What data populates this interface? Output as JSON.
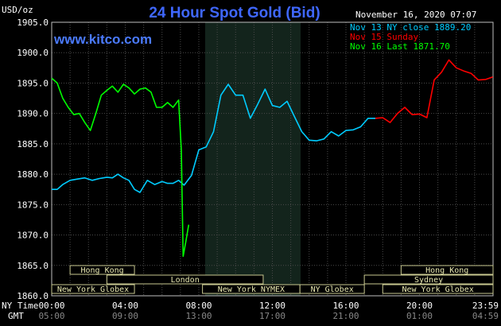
{
  "chart_data": {
    "type": "line",
    "title": "24 Hour Spot Gold (Bid)",
    "website": "www.kitco.com",
    "y_unit": "USD/oz",
    "date": "November 16, 2020 07:07",
    "ylim": [
      1860,
      1905
    ],
    "y_ticks": [
      "1905.0",
      "1900.0",
      "1895.0",
      "1890.0",
      "1885.0",
      "1880.0",
      "1875.0",
      "1870.0",
      "1865.0",
      "1860.0"
    ],
    "x_ticks_ny": [
      "00:00",
      "04:00",
      "08:00",
      "12:00",
      "16:00",
      "20:00",
      "23:59"
    ],
    "x_ticks_gmt": [
      "05:00",
      "09:00",
      "13:00",
      "17:00",
      "21:00",
      "01:00",
      "04:59"
    ],
    "x_row_labels": {
      "ny": "NY Time",
      "gmt": "GMT"
    },
    "grid": true,
    "legend": [
      {
        "label": "Nov 13 NY close 1889.20",
        "color": "#00ccff"
      },
      {
        "label": "Nov 15 Sunday",
        "color": "#ff0000"
      },
      {
        "label": "Nov 16 Last 1871.70",
        "color": "#00ff00"
      }
    ],
    "sessions": [
      {
        "label": "Hong Kong",
        "row": 0,
        "start_hour": 1.0,
        "end_hour": 4.5
      },
      {
        "label": "London",
        "row": 1,
        "start_hour": 3.0,
        "end_hour": 11.5
      },
      {
        "label": "New York Globex",
        "row": 2,
        "start_hour": 0.0,
        "end_hour": 4.5
      },
      {
        "label": "New York NYMEX",
        "row": 2,
        "start_hour": 8.2,
        "end_hour": 13.5
      },
      {
        "label": "NY Globex",
        "row": 2,
        "start_hour": 13.5,
        "end_hour": 17.0
      },
      {
        "label": "Hong Kong",
        "row": 0,
        "start_hour": 19.0,
        "end_hour": 24.0
      },
      {
        "label": "Sydney",
        "row": 1,
        "start_hour": 17.0,
        "end_hour": 24.0
      },
      {
        "label": "New York Globex",
        "row": 2,
        "start_hour": 18.0,
        "end_hour": 24.0
      }
    ],
    "series": [
      {
        "name": "Nov 13 NY close 1889.20",
        "color": "#00ccff",
        "x": [
          0.0,
          0.3,
          0.6,
          1.0,
          1.4,
          1.8,
          2.2,
          2.6,
          3.0,
          3.3,
          3.6,
          3.9,
          4.2,
          4.5,
          4.8,
          5.2,
          5.6,
          6.0,
          6.3,
          6.6,
          6.9,
          7.2,
          7.6,
          8.0,
          8.4,
          8.8,
          9.2,
          9.6,
          10.0,
          10.4,
          10.8,
          11.2,
          11.6,
          12.0,
          12.4,
          12.8,
          13.2,
          13.6,
          14.0,
          14.4,
          14.8,
          15.2,
          15.6,
          16.0,
          16.4,
          16.8,
          17.2,
          17.6
        ],
        "y": [
          1877.5,
          1877.5,
          1878.3,
          1879.0,
          1879.2,
          1879.4,
          1879.0,
          1879.3,
          1879.5,
          1879.4,
          1880.0,
          1879.4,
          1879.0,
          1877.5,
          1877.0,
          1879.0,
          1878.3,
          1878.8,
          1878.5,
          1878.5,
          1879.0,
          1878.2,
          1879.8,
          1884.0,
          1884.5,
          1887.0,
          1893.0,
          1894.8,
          1893.0,
          1893.0,
          1889.2,
          1891.5,
          1894.0,
          1891.3,
          1891.0,
          1892.0,
          1889.5,
          1887.0,
          1885.6,
          1885.5,
          1885.8,
          1887.0,
          1886.3,
          1887.2,
          1887.3,
          1887.8,
          1889.2,
          1889.2
        ]
      },
      {
        "name": "Nov 15 Sunday",
        "color": "#ff0000",
        "x": [
          17.6,
          18.0,
          18.4,
          18.8,
          19.2,
          19.6,
          20.0,
          20.4,
          20.8,
          21.2,
          21.6,
          22.0,
          22.4,
          22.8,
          23.2,
          23.6,
          23.99
        ],
        "y": [
          1889.2,
          1889.3,
          1888.5,
          1890.0,
          1891.0,
          1889.8,
          1889.9,
          1889.3,
          1895.5,
          1896.8,
          1898.8,
          1897.5,
          1897.0,
          1896.6,
          1895.5,
          1895.6,
          1896.0
        ]
      },
      {
        "name": "Nov 16 Last 1871.70",
        "color": "#00ff00",
        "x": [
          0.0,
          0.3,
          0.6,
          0.9,
          1.2,
          1.5,
          1.8,
          2.1,
          2.4,
          2.7,
          3.0,
          3.3,
          3.6,
          3.9,
          4.2,
          4.5,
          4.8,
          5.1,
          5.4,
          5.7,
          6.0,
          6.3,
          6.6,
          6.9,
          7.05,
          7.15,
          7.3,
          7.45
        ],
        "y": [
          1895.8,
          1895.0,
          1892.5,
          1891.0,
          1889.8,
          1890.0,
          1888.5,
          1887.2,
          1890.0,
          1893.0,
          1893.8,
          1894.5,
          1893.5,
          1894.8,
          1894.2,
          1893.2,
          1894.0,
          1894.2,
          1893.5,
          1891.0,
          1891.0,
          1891.8,
          1891.0,
          1892.2,
          1884.0,
          1866.5,
          1869.0,
          1871.7
        ]
      }
    ]
  }
}
